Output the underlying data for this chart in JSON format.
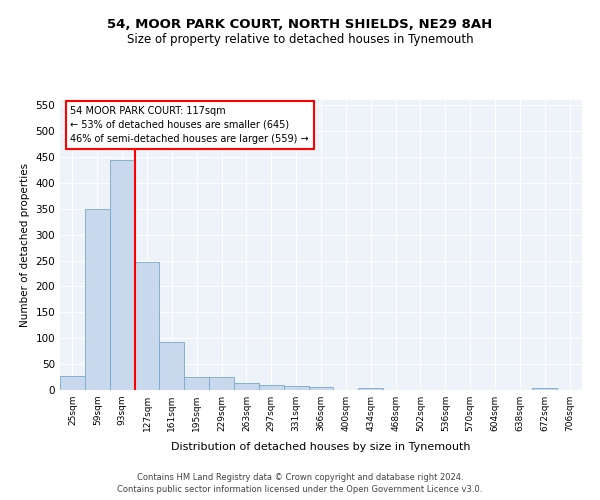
{
  "title": "54, MOOR PARK COURT, NORTH SHIELDS, NE29 8AH",
  "subtitle": "Size of property relative to detached houses in Tynemouth",
  "xlabel": "Distribution of detached houses by size in Tynemouth",
  "ylabel": "Number of detached properties",
  "bar_color": "#c9d9ed",
  "bar_edge_color": "#7aa8cc",
  "bin_labels": [
    "25sqm",
    "59sqm",
    "93sqm",
    "127sqm",
    "161sqm",
    "195sqm",
    "229sqm",
    "263sqm",
    "297sqm",
    "331sqm",
    "366sqm",
    "400sqm",
    "434sqm",
    "468sqm",
    "502sqm",
    "536sqm",
    "570sqm",
    "604sqm",
    "638sqm",
    "672sqm",
    "706sqm"
  ],
  "bar_values": [
    27,
    350,
    445,
    248,
    92,
    25,
    25,
    13,
    10,
    7,
    5,
    0,
    4,
    0,
    0,
    0,
    0,
    0,
    0,
    4,
    0
  ],
  "ylim": [
    0,
    560
  ],
  "yticks": [
    0,
    50,
    100,
    150,
    200,
    250,
    300,
    350,
    400,
    450,
    500,
    550
  ],
  "vline_x": 2.53,
  "annotation_text": "54 MOOR PARK COURT: 117sqm\n← 53% of detached houses are smaller (645)\n46% of semi-detached houses are larger (559) →",
  "annotation_box_color": "white",
  "annotation_box_edge_color": "red",
  "vline_color": "red",
  "footer_line1": "Contains HM Land Registry data © Crown copyright and database right 2024.",
  "footer_line2": "Contains public sector information licensed under the Open Government Licence v3.0.",
  "background_color": "#eef2f9",
  "grid_color": "white",
  "fig_bg_color": "white",
  "title_fontsize": 9.5,
  "subtitle_fontsize": 8.5
}
